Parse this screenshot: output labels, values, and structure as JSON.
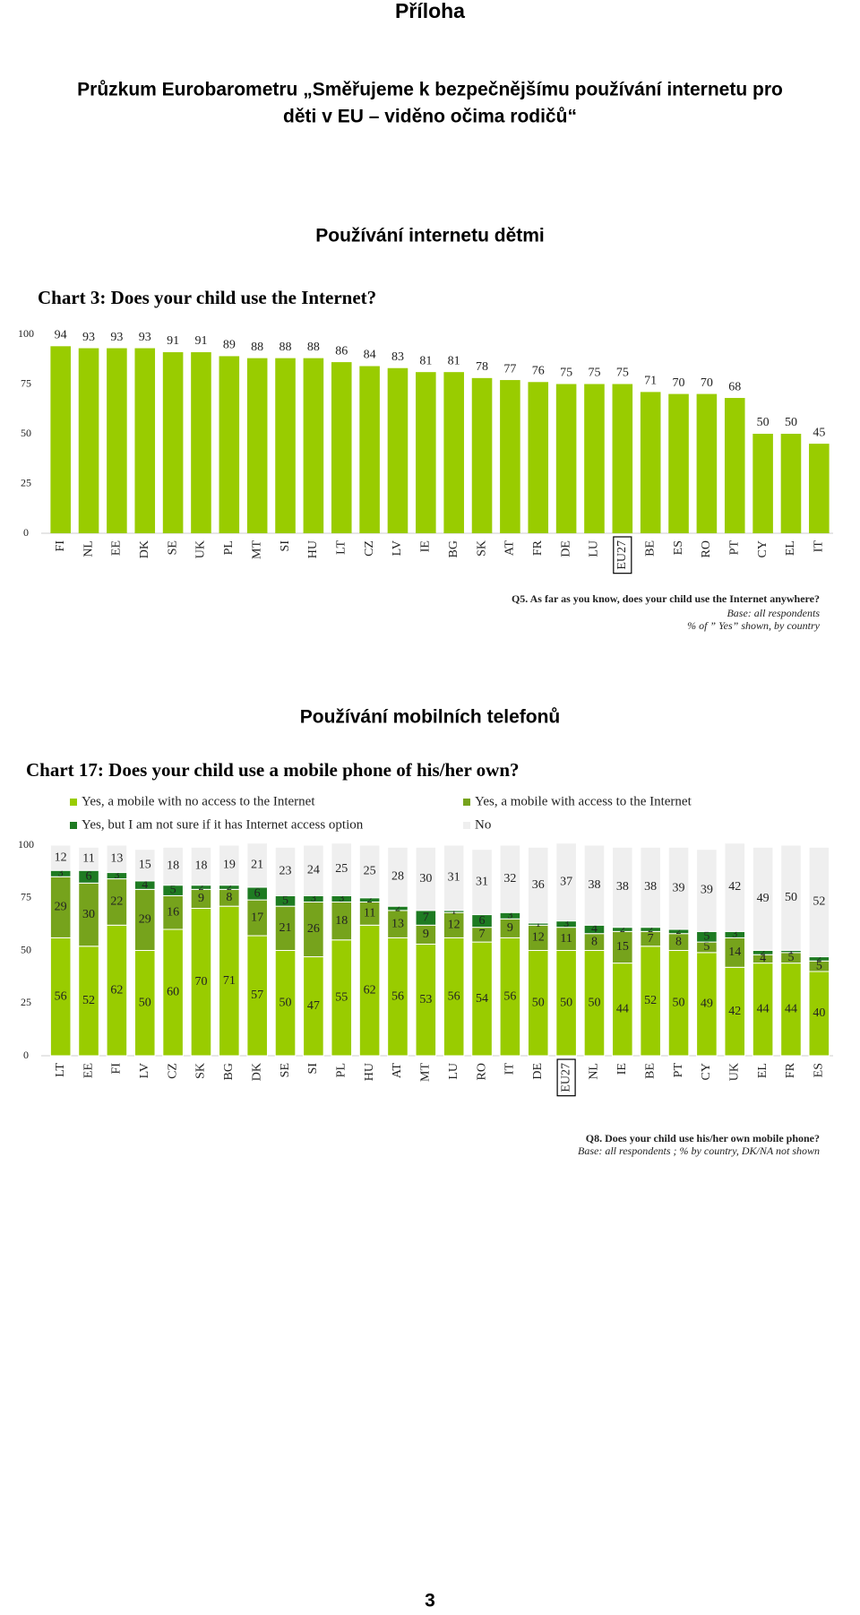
{
  "page": {
    "heading": "Příloha",
    "title_lines": [
      "Průzkum Eurobarometru „Směřujeme k bezpečnějšímu používání internetu pro",
      "děti v EU – viděno očima rodičů“"
    ],
    "sections": [
      "Používání internetu dětmi",
      "Používání mobilních telefonů"
    ],
    "page_number": "3"
  },
  "chart_data": [
    {
      "type": "bar",
      "title": "Chart 3: Does your child use the Internet?",
      "categories": [
        "FI",
        "NL",
        "EE",
        "DK",
        "SE",
        "UK",
        "PL",
        "MT",
        "SI",
        "HU",
        "LT",
        "CZ",
        "LV",
        "IE",
        "BG",
        "SK",
        "AT",
        "FR",
        "DE",
        "LU",
        "EU27",
        "BE",
        "ES",
        "RO",
        "PT",
        "CY",
        "EL",
        "IT"
      ],
      "values": [
        94,
        93,
        93,
        93,
        91,
        91,
        89,
        88,
        88,
        88,
        86,
        84,
        83,
        81,
        81,
        78,
        77,
        76,
        75,
        75,
        75,
        71,
        70,
        70,
        68,
        50,
        50,
        45
      ],
      "color": "#99cc00",
      "ylim": [
        0,
        100
      ],
      "yticks": [
        0,
        25,
        50,
        75,
        100
      ],
      "grid": false,
      "highlighted_category": "EU27",
      "notes": [
        "Q5. As far as you know, does your child use the Internet anywhere?",
        "Base: all respondents",
        "% of ” Yes” shown, by country"
      ]
    },
    {
      "type": "stacked_bar",
      "title": "Chart 17: Does your child use a mobile phone of his/her own?",
      "categories": [
        "LT",
        "EE",
        "FI",
        "LV",
        "CZ",
        "SK",
        "BG",
        "DK",
        "SE",
        "SI",
        "PL",
        "HU",
        "AT",
        "MT",
        "LU",
        "RO",
        "IT",
        "DE",
        "EU27",
        "NL",
        "IE",
        "BE",
        "PT",
        "CY",
        "UK",
        "EL",
        "FR",
        "ES"
      ],
      "series": [
        {
          "name": "Yes, a mobile with no access to the Internet",
          "color": "#99cc00",
          "values": [
            56,
            52,
            62,
            50,
            60,
            70,
            71,
            57,
            50,
            47,
            55,
            62,
            56,
            53,
            56,
            54,
            56,
            50,
            50,
            50,
            44,
            52,
            50,
            49,
            42,
            44,
            44,
            40
          ]
        },
        {
          "name": "Yes, a mobile with access to the Internet",
          "color": "#76a31c",
          "values": [
            29,
            30,
            22,
            29,
            16,
            9,
            8,
            17,
            21,
            26,
            18,
            11,
            13,
            9,
            12,
            7,
            9,
            12,
            11,
            8,
            15,
            7,
            8,
            5,
            14,
            4,
            5,
            5
          ]
        },
        {
          "name": "Yes, but I am not sure if it has Internet access option",
          "color": "#1e7b22",
          "values": [
            3,
            6,
            3,
            4,
            5,
            2,
            2,
            6,
            5,
            3,
            3,
            2,
            2,
            7,
            1,
            6,
            3,
            1,
            3,
            4,
            2,
            2,
            2,
            5,
            3,
            2,
            1,
            2
          ]
        },
        {
          "name": "No",
          "color": "#efefef",
          "values": [
            12,
            11,
            13,
            15,
            18,
            18,
            19,
            21,
            23,
            24,
            25,
            25,
            28,
            30,
            31,
            31,
            32,
            36,
            37,
            38,
            38,
            38,
            39,
            39,
            42,
            49,
            50,
            52
          ]
        }
      ],
      "ylim": [
        0,
        100
      ],
      "yticks": [
        0,
        25,
        50,
        75,
        100
      ],
      "grid": false,
      "highlighted_category": "EU27",
      "notes": [
        "Q8. Does your child use his/her own mobile phone?",
        "Base: all respondents ; % by country, DK/NA not shown"
      ]
    }
  ]
}
